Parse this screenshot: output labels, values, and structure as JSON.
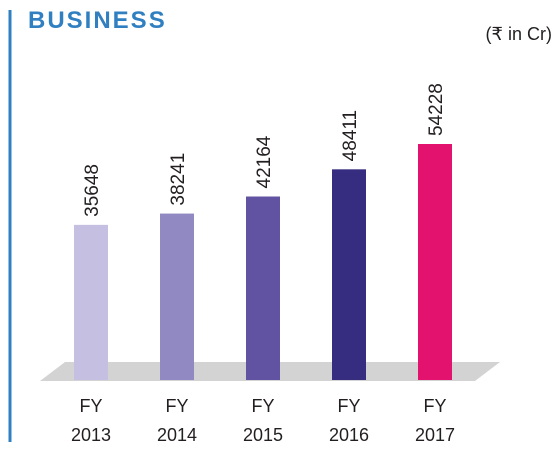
{
  "chart_data": {
    "type": "bar",
    "title": "BUSINESS",
    "subtitle": "(₹ in Cr)",
    "categories": [
      "FY 2013",
      "FY 2014",
      "FY 2015",
      "FY 2016",
      "FY 2017"
    ],
    "values": [
      35648,
      38241,
      42164,
      48411,
      54228
    ],
    "colors": [
      "#c5c0e2",
      "#9189c1",
      "#6153a1",
      "#372d80",
      "#e3126e"
    ]
  }
}
